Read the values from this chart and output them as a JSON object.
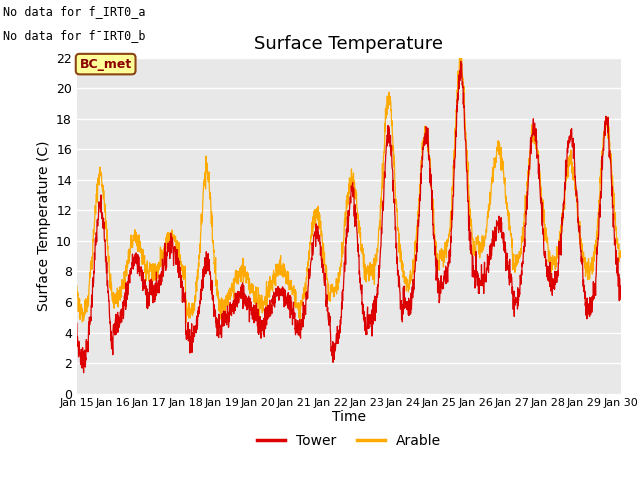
{
  "title": "Surface Temperature",
  "ylabel": "Surface Temperature (C)",
  "xlabel": "Time",
  "ylim": [
    0,
    22
  ],
  "yticks": [
    0,
    2,
    4,
    6,
    8,
    10,
    12,
    14,
    16,
    18,
    20,
    22
  ],
  "xtick_labels": [
    "Jan 15",
    "Jan 16",
    "Jan 17",
    "Jan 18",
    "Jan 19",
    "Jan 20",
    "Jan 21",
    "Jan 22",
    "Jan 23",
    "Jan 24",
    "Jan 25",
    "Jan 26",
    "Jan 27",
    "Jan 28",
    "Jan 29",
    "Jan 30"
  ],
  "tower_color": "#dd0000",
  "arable_color": "#ffaa00",
  "bg_color": "#e8e8e8",
  "fig_bg_color": "#ffffff",
  "nodata_text_1": "No data for f_IRT0_a",
  "nodata_text_2": "No data for f¯IRT0_b",
  "bc_met_label": "BC_met",
  "legend_labels": [
    "Tower",
    "Arable"
  ],
  "title_fontsize": 13,
  "axis_fontsize": 10,
  "tick_fontsize": 9
}
